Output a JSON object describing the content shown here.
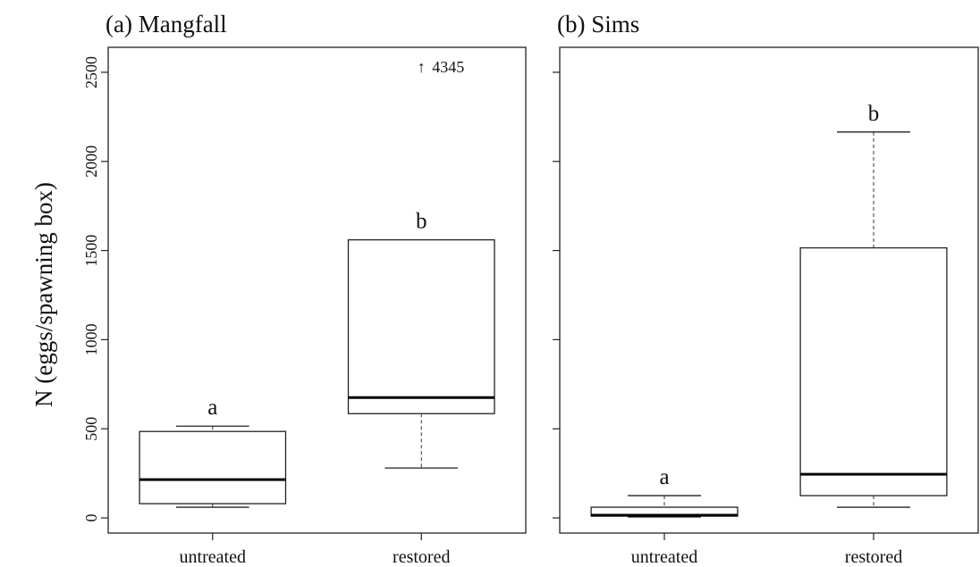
{
  "chart_data": {
    "type": "boxplot",
    "ylabel": "N (eggs/spawning box)",
    "ylim": [
      -85,
      2640
    ],
    "yticks": [
      0,
      500,
      1000,
      1500,
      2000,
      2500
    ],
    "yticks_text": [
      "0",
      "500",
      "1000",
      "1500",
      "2000",
      "2500"
    ],
    "categories": [
      "untreated",
      "restored"
    ],
    "panels": [
      {
        "title": "(a) Mangfall",
        "show_y_ticks": true,
        "boxes": [
          {
            "category": "untreated",
            "whisker_low": 60,
            "q1": 80,
            "median": 215,
            "q3": 485,
            "whisker_high": 515,
            "letter": "a"
          },
          {
            "category": "restored",
            "whisker_low": 280,
            "q1": 585,
            "median": 675,
            "q3": 1560,
            "whisker_high": 1560,
            "letter": "b"
          }
        ],
        "outlier_note": {
          "category": "restored",
          "arrow": "↑",
          "value": "4345",
          "y": 2540
        }
      },
      {
        "title": "(b) Sims",
        "show_y_ticks": false,
        "boxes": [
          {
            "category": "untreated",
            "whisker_low": 5,
            "q1": 10,
            "median": 15,
            "q3": 60,
            "whisker_high": 125,
            "letter": "a"
          },
          {
            "category": "restored",
            "whisker_low": 60,
            "q1": 125,
            "median": 245,
            "q3": 1515,
            "whisker_high": 2165,
            "letter": "b"
          }
        ]
      }
    ]
  }
}
